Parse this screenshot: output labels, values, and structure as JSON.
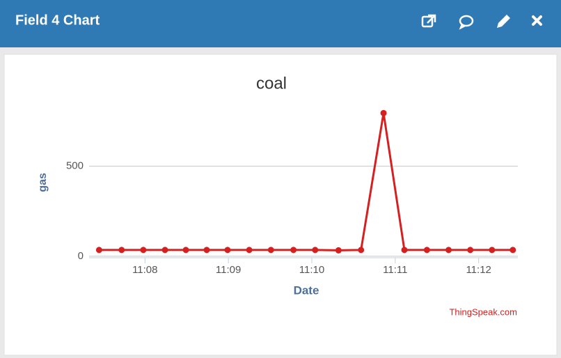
{
  "header": {
    "title": "Field 4 Chart"
  },
  "chart_data": {
    "type": "line",
    "title": "coal",
    "y_label": "gas",
    "x_label": "Date",
    "x": [
      667.45,
      667.72,
      667.98,
      668.24,
      668.49,
      668.74,
      668.99,
      669.25,
      669.51,
      669.78,
      670.04,
      670.32,
      670.59,
      670.86,
      671.11,
      671.38,
      671.64,
      671.9,
      672.16,
      672.41
    ],
    "series": [
      {
        "name": "gas",
        "color": "#d62020",
        "values": [
          35,
          35,
          35,
          35,
          35,
          35,
          35,
          35,
          35,
          35,
          35,
          33,
          35,
          795,
          35,
          35,
          35,
          35,
          35,
          35
        ]
      }
    ],
    "xlim": [
      667.33,
      672.47
    ],
    "xticks": [
      {
        "value": 668,
        "label": "11:08"
      },
      {
        "value": 669,
        "label": "11:09"
      },
      {
        "value": 670,
        "label": "11:10"
      },
      {
        "value": 671,
        "label": "11:11"
      },
      {
        "value": 672,
        "label": "11:12"
      }
    ],
    "ylim": [
      -8,
      920
    ],
    "yticks": [
      0,
      500
    ],
    "grid": true
  },
  "credit": "ThingSpeak.com"
}
